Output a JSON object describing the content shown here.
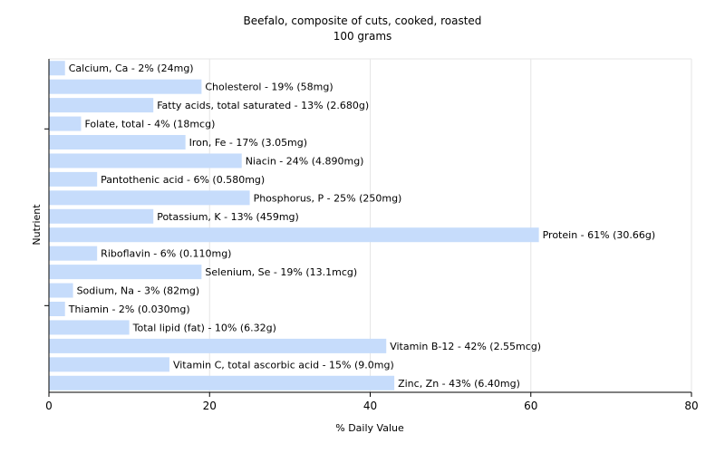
{
  "chart_data": {
    "type": "bar",
    "orientation": "horizontal",
    "title": "Beefalo, composite of cuts, cooked, roasted",
    "subtitle": "100 grams",
    "xlabel": "% Daily Value",
    "ylabel": "Nutrient",
    "xlim": [
      0,
      80
    ],
    "xticks": [
      "0",
      "20",
      "40",
      "60",
      "80"
    ],
    "grid": true,
    "bar_color": "#c6dcfb",
    "categories": [
      "Calcium, Ca",
      "Cholesterol",
      "Fatty acids, total saturated",
      "Folate, total",
      "Iron, Fe",
      "Niacin",
      "Pantothenic acid",
      "Phosphorus, P",
      "Potassium, K",
      "Protein",
      "Riboflavin",
      "Selenium, Se",
      "Sodium, Na",
      "Thiamin",
      "Total lipid (fat)",
      "Vitamin B-12",
      "Vitamin C, total ascorbic acid",
      "Zinc, Zn"
    ],
    "values": [
      2,
      19,
      13,
      4,
      17,
      24,
      6,
      25,
      13,
      61,
      6,
      19,
      3,
      2,
      10,
      42,
      15,
      43
    ],
    "labels": [
      "Calcium, Ca - 2% (24mg)",
      "Cholesterol - 19% (58mg)",
      "Fatty acids, total saturated - 13% (2.680g)",
      "Folate, total - 4% (18mcg)",
      "Iron, Fe - 17% (3.05mg)",
      "Niacin - 24% (4.890mg)",
      "Pantothenic acid - 6% (0.580mg)",
      "Phosphorus, P - 25% (250mg)",
      "Potassium, K - 13% (459mg)",
      "Protein - 61% (30.66g)",
      "Riboflavin - 6% (0.110mg)",
      "Selenium, Se - 19% (13.1mcg)",
      "Sodium, Na - 3% (82mg)",
      "Thiamin - 2% (0.030mg)",
      "Total lipid (fat) - 10% (6.32g)",
      "Vitamin B-12 - 42% (2.55mcg)",
      "Vitamin C, total ascorbic acid - 15% (9.0mg)",
      "Zinc, Zn - 43% (6.40mg)"
    ]
  }
}
